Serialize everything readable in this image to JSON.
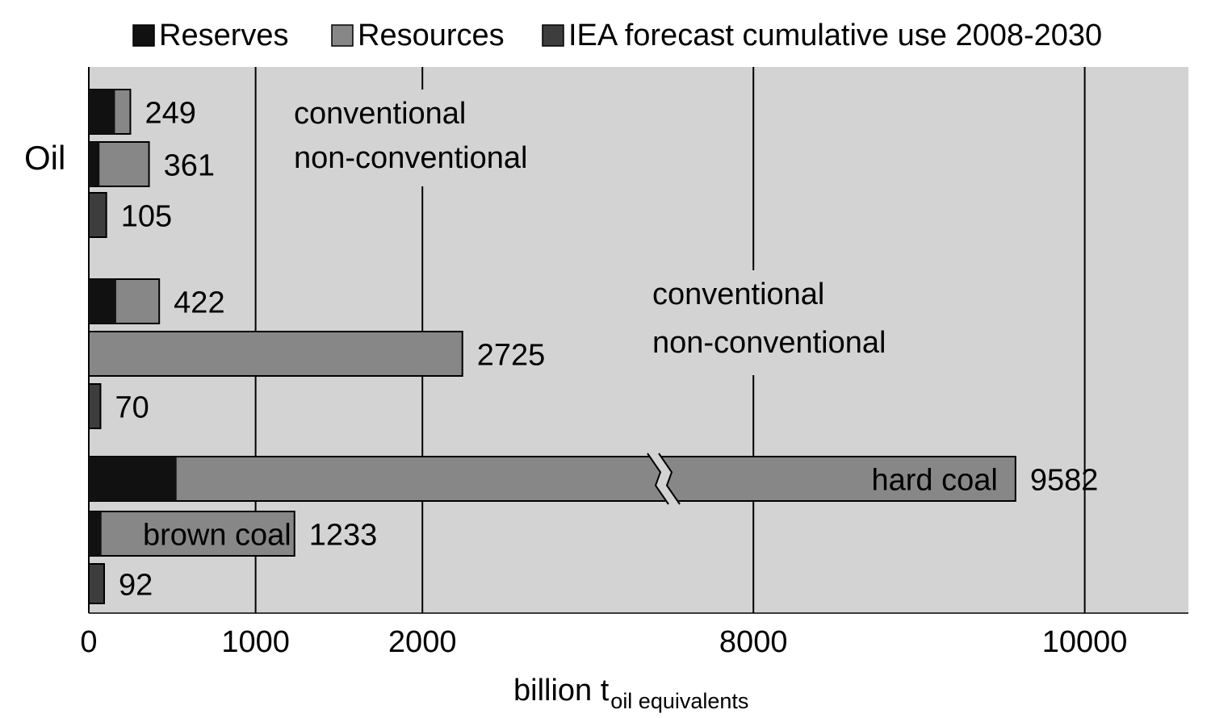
{
  "chart_data": {
    "type": "bar",
    "orientation": "horizontal",
    "axis_break": true,
    "xlabel": "billion t",
    "xlabel_sub": "oil equivalents",
    "x_ticks": [
      0,
      1000,
      2000,
      8000,
      10000
    ],
    "grid": true,
    "legend_position": "top",
    "legend": [
      {
        "name": "Reserves",
        "color": "#111111"
      },
      {
        "name": "Resources",
        "color": "#878787"
      },
      {
        "name": "IEA forecast cumulative use 2008-2030",
        "color": "#3d3d3d"
      }
    ],
    "groups": [
      {
        "label": "Oil"
      },
      {
        "label": ""
      },
      {
        "label": ""
      }
    ],
    "bars": [
      {
        "group": 0,
        "kind": "stack",
        "reserves": 157,
        "resources": 92,
        "total": 249,
        "total_label": "249"
      },
      {
        "group": 0,
        "kind": "stack",
        "reserves": 64,
        "resources": 297,
        "total": 361,
        "total_label": "361"
      },
      {
        "group": 0,
        "kind": "forecast",
        "total": 105,
        "total_label": "105"
      },
      {
        "group": 1,
        "kind": "stack",
        "reserves": 164,
        "resources": 258,
        "total": 422,
        "total_label": "422"
      },
      {
        "group": 1,
        "kind": "stack",
        "reserves": 0,
        "resources": 2725,
        "total": 2725,
        "total_label": "2725"
      },
      {
        "group": 1,
        "kind": "forecast",
        "total": 70,
        "total_label": "70"
      },
      {
        "group": 2,
        "kind": "stack",
        "reserves": 526,
        "resources": 9056,
        "total": 9582,
        "total_label": "9582",
        "inner_label": "hard coal"
      },
      {
        "group": 2,
        "kind": "stack",
        "reserves": 76,
        "resources": 1157,
        "total": 1233,
        "total_label": "1233",
        "inner_label": "brown coal"
      },
      {
        "group": 2,
        "kind": "forecast",
        "total": 92,
        "total_label": "92"
      }
    ],
    "annotations": [
      {
        "group": 0,
        "lines": [
          "conventional",
          "non-conventional"
        ]
      },
      {
        "group": 1,
        "lines": [
          "conventional",
          "non-conventional"
        ]
      }
    ]
  }
}
